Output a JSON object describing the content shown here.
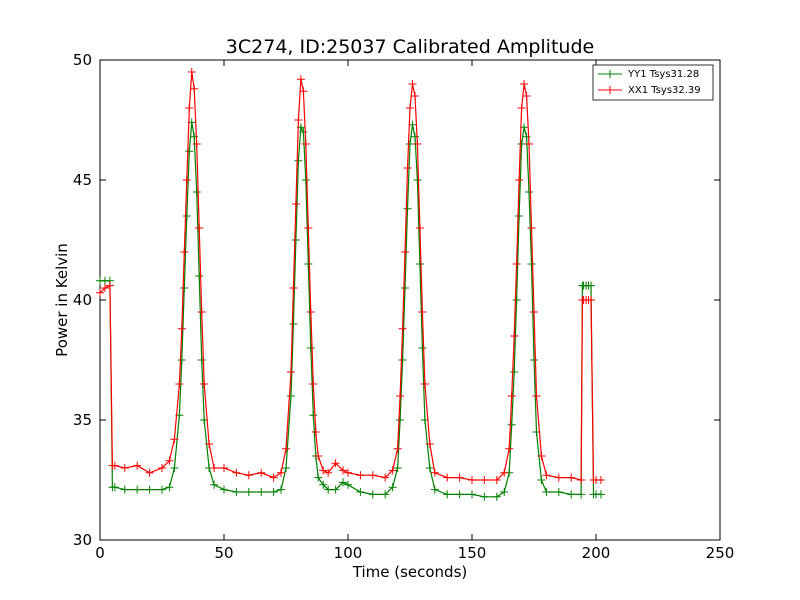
{
  "chart_data": {
    "type": "line",
    "title": "3C274, ID:25037 Calibrated Amplitude",
    "xlabel": "Time (seconds)",
    "ylabel": "Power in Kelvin",
    "xlim": [
      0,
      250
    ],
    "ylim": [
      30,
      50
    ],
    "xticks": [
      0,
      50,
      100,
      150,
      200,
      250
    ],
    "yticks": [
      30,
      35,
      40,
      45,
      50
    ],
    "grid": false,
    "legend_position": "top-right",
    "marker": "+",
    "series": [
      {
        "name": "YY1 Tsys31.28",
        "color": "#008000",
        "x": [
          0,
          2,
          4,
          5,
          6,
          10,
          15,
          20,
          25,
          28,
          30,
          32,
          33,
          34,
          35,
          36,
          37,
          38,
          39,
          40,
          41,
          42,
          44,
          46,
          50,
          55,
          60,
          65,
          70,
          73,
          75,
          77,
          78,
          79,
          80,
          81,
          82,
          83,
          84,
          85,
          86,
          87,
          88,
          90,
          92,
          95,
          98,
          100,
          105,
          110,
          115,
          118,
          120,
          121,
          122,
          123,
          124,
          125,
          126,
          127,
          128,
          129,
          130,
          131,
          133,
          135,
          140,
          145,
          150,
          155,
          160,
          163,
          165,
          166,
          167,
          168,
          169,
          170,
          171,
          172,
          173,
          174,
          175,
          176,
          178,
          180,
          185,
          190,
          194,
          194.5,
          195,
          196,
          197,
          198,
          199,
          200,
          202
        ],
        "y": [
          40.8,
          40.8,
          40.8,
          32.2,
          32.2,
          32.1,
          32.1,
          32.1,
          32.1,
          32.2,
          33.0,
          35.2,
          37.5,
          40.5,
          43.5,
          46.2,
          47.4,
          46.8,
          44.5,
          41.0,
          37.5,
          35.0,
          33.0,
          32.3,
          32.1,
          32.0,
          32.0,
          32.0,
          32.0,
          32.1,
          33.0,
          36.0,
          39.0,
          42.5,
          45.8,
          47.2,
          47.0,
          45.0,
          41.5,
          38.0,
          35.2,
          33.5,
          32.6,
          32.3,
          32.1,
          32.1,
          32.4,
          32.3,
          32.0,
          31.9,
          31.9,
          32.2,
          33.0,
          35.0,
          37.5,
          40.5,
          43.8,
          46.5,
          47.3,
          46.8,
          45.0,
          41.5,
          38.0,
          35.0,
          33.0,
          32.1,
          31.9,
          31.9,
          31.9,
          31.8,
          31.8,
          32.0,
          32.8,
          34.8,
          37.0,
          40.0,
          43.5,
          46.5,
          47.2,
          46.8,
          44.5,
          41.5,
          37.5,
          34.5,
          32.5,
          32.0,
          32.0,
          31.9,
          31.9,
          40.6,
          40.6,
          40.6,
          40.6,
          40.6,
          31.9,
          31.9,
          31.9
        ]
      },
      {
        "name": "XX1 Tsys32.39",
        "color": "#ff0000",
        "x": [
          0,
          2,
          4,
          5,
          6,
          10,
          15,
          20,
          25,
          28,
          30,
          32,
          33,
          34,
          35,
          36,
          37,
          38,
          39,
          40,
          41,
          42,
          44,
          46,
          50,
          55,
          60,
          65,
          70,
          73,
          75,
          77,
          78,
          79,
          80,
          81,
          82,
          83,
          84,
          85,
          86,
          87,
          88,
          90,
          92,
          95,
          98,
          100,
          105,
          110,
          115,
          118,
          120,
          121,
          122,
          123,
          124,
          125,
          126,
          127,
          128,
          129,
          130,
          131,
          133,
          135,
          140,
          145,
          150,
          155,
          160,
          163,
          165,
          166,
          167,
          168,
          169,
          170,
          171,
          172,
          173,
          174,
          175,
          176,
          178,
          180,
          185,
          190,
          194,
          194.5,
          195,
          196,
          197,
          198,
          199,
          200,
          202
        ],
        "y": [
          40.3,
          40.5,
          40.6,
          33.1,
          33.1,
          33.0,
          33.1,
          32.8,
          33.0,
          33.3,
          34.2,
          36.5,
          38.8,
          42.0,
          45.0,
          48.0,
          49.5,
          48.8,
          46.5,
          43.0,
          39.5,
          36.5,
          34.0,
          33.0,
          33.0,
          32.8,
          32.7,
          32.8,
          32.6,
          32.8,
          33.8,
          37.0,
          40.5,
          44.0,
          47.5,
          49.2,
          48.7,
          46.5,
          43.0,
          39.5,
          36.5,
          34.5,
          33.5,
          32.9,
          32.8,
          33.2,
          32.9,
          32.8,
          32.7,
          32.7,
          32.6,
          32.9,
          33.8,
          36.0,
          38.8,
          42.0,
          45.5,
          48.0,
          49.0,
          48.5,
          46.5,
          43.0,
          39.5,
          36.5,
          34.0,
          32.8,
          32.6,
          32.6,
          32.5,
          32.5,
          32.5,
          32.8,
          33.8,
          36.0,
          38.5,
          41.5,
          45.0,
          48.0,
          49.0,
          48.5,
          46.5,
          43.0,
          39.5,
          36.0,
          33.5,
          32.7,
          32.6,
          32.6,
          32.5,
          40.0,
          40.0,
          40.0,
          40.0,
          40.0,
          32.5,
          32.5,
          32.5
        ]
      }
    ]
  }
}
